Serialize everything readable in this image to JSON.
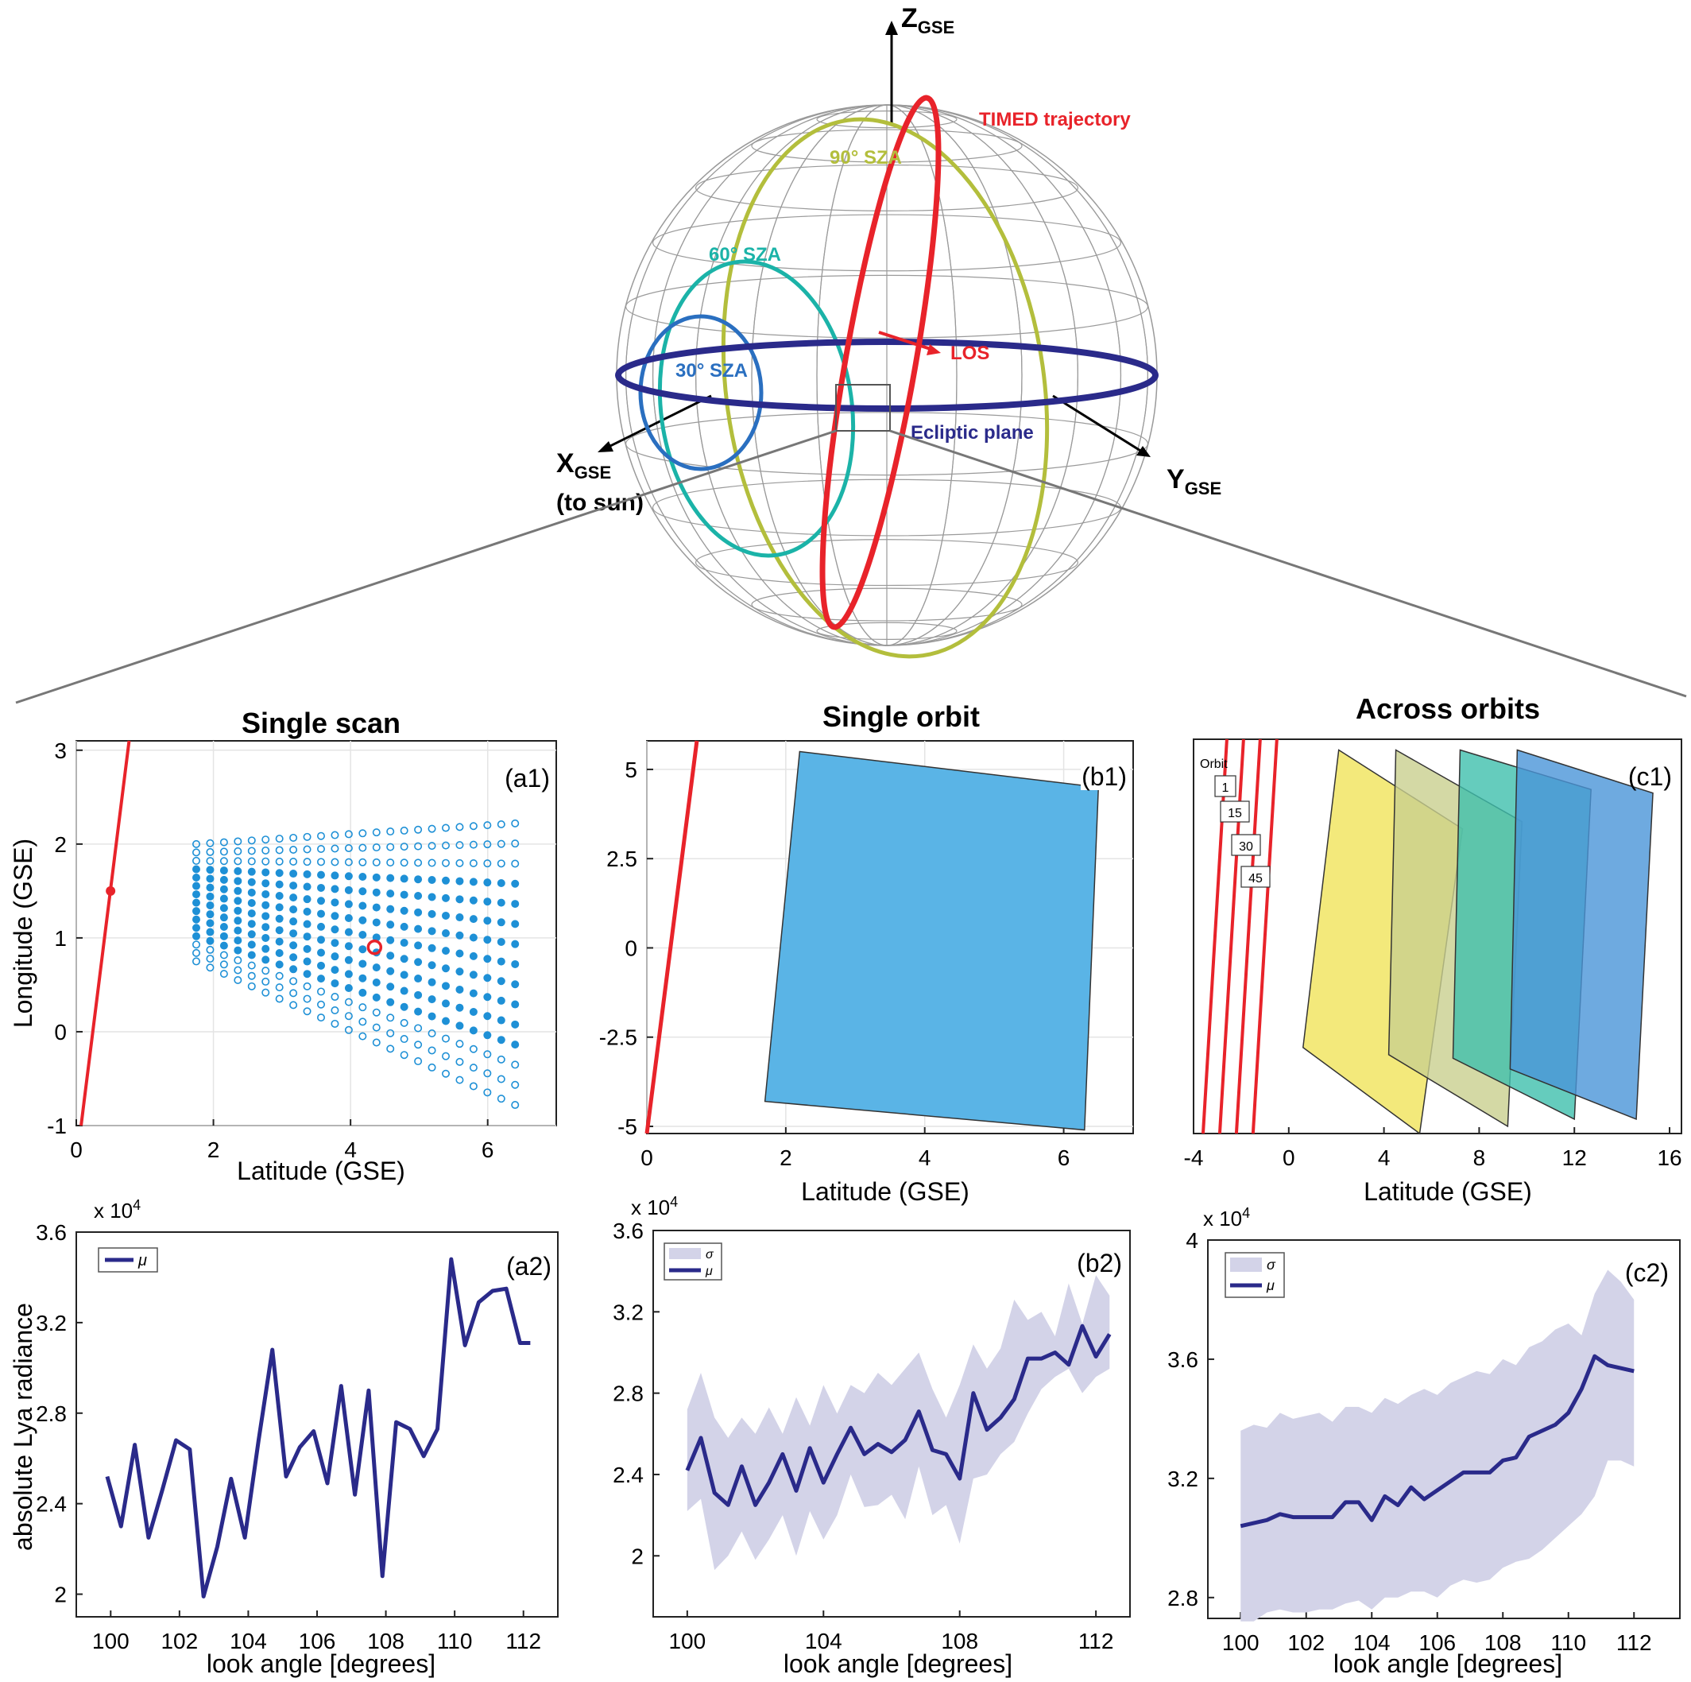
{
  "sphere": {
    "z_axis": {
      "main": "Z",
      "sub": "GSE"
    },
    "x_axis": {
      "main": "X",
      "sub": "GSE",
      "note": "(to sun)"
    },
    "y_axis": {
      "main": "Y",
      "sub": "GSE"
    },
    "trajectory_label": "TIMED trajectory",
    "los_label": "LOS",
    "ecliptic_label": "Ecliptic plane",
    "sza90": "90° SZA",
    "sza60": "60° SZA",
    "sza30": "30° SZA",
    "colors": {
      "trajectory": "#e8232a",
      "ecliptic": "#2a2a8a",
      "sza90": "#b3be3c",
      "sza60": "#1bb3a8",
      "sza30": "#2a6fc0",
      "grid": "#9a9a9a"
    }
  },
  "titles": {
    "a": "Single scan",
    "b": "Single orbit",
    "c": "Across orbits"
  },
  "panel_labels": {
    "a1": "(a1)",
    "b1": "(b1)",
    "c1": "(c1)",
    "a2": "(a2)",
    "b2": "(b2)",
    "c2": "(c2)"
  },
  "axis_labels": {
    "longitude": "Longitude (GSE)",
    "latitude": "Latitude (GSE)",
    "radiance": "absolute  Lya radiance",
    "look_angle": "look angle [degrees]",
    "exponent": "x 10"
  },
  "legend": {
    "mu": "μ",
    "sigma": "σ",
    "orbit_title": "Orbit",
    "orbits": [
      "1",
      "15",
      "30",
      "45"
    ]
  },
  "chart_data": [
    {
      "id": "a1",
      "type": "scatter",
      "title": "Single scan",
      "xlabel": "Latitude (GSE)",
      "ylabel": "Longitude (GSE)",
      "xlim": [
        0,
        7
      ],
      "ylim": [
        -1,
        3.1
      ],
      "xticks": [
        0,
        2,
        4,
        6
      ],
      "yticks": [
        -1,
        0,
        1,
        2,
        3
      ],
      "trajectory_line": [
        [
          0.07,
          -1
        ],
        [
          0.77,
          3.1
        ]
      ],
      "trajectory_point": [
        0.5,
        1.5
      ],
      "highlight_point": [
        4.35,
        0.9
      ],
      "scan_grid": {
        "columns": 24,
        "rows": 15,
        "x_start": 1.75,
        "x_end": 6.4,
        "left_edge": [
          0.75,
          2.0
        ],
        "right_edge": [
          -0.78,
          2.22
        ],
        "filled_rows": [
          3,
          11
        ]
      },
      "colors": {
        "trajectory": "#e8232a",
        "points": "#1e90d6"
      }
    },
    {
      "id": "b1",
      "type": "area",
      "title": "Single orbit",
      "xlabel": "Latitude (GSE)",
      "ylabel": "",
      "xlim": [
        0,
        7
      ],
      "ylim": [
        -5.2,
        5.8
      ],
      "xticks": [
        0,
        2,
        4,
        6
      ],
      "yticks": [
        5,
        2.5,
        0,
        -2.5,
        -5
      ],
      "trajectory_line": [
        [
          0.0,
          -5.2
        ],
        [
          0.72,
          5.8
        ]
      ],
      "footprint": [
        [
          2.2,
          5.5
        ],
        [
          6.5,
          4.5
        ],
        [
          6.3,
          -5.1
        ],
        [
          1.7,
          -4.3
        ]
      ],
      "colors": {
        "trajectory": "#e8232a",
        "footprint": "#5ab4e6"
      }
    },
    {
      "id": "c1",
      "type": "area",
      "title": "Across orbits",
      "xlabel": "Latitude (GSE)",
      "ylabel": "",
      "xlim": [
        -4,
        16.5
      ],
      "ylim": [
        -5.2,
        5.8
      ],
      "xticks": [
        -4,
        0,
        4,
        8,
        12,
        16
      ],
      "trajectory_lines": [
        [
          [
            -3.6,
            -5.2
          ],
          [
            -2.6,
            5.8
          ]
        ],
        [
          [
            -2.9,
            -5.2
          ],
          [
            -1.9,
            5.8
          ]
        ],
        [
          [
            -2.2,
            -5.2
          ],
          [
            -1.2,
            5.8
          ]
        ],
        [
          [
            -1.5,
            -5.2
          ],
          [
            -0.5,
            5.8
          ]
        ]
      ],
      "footprints": [
        {
          "name": "1",
          "color": "#f0e45a",
          "poly": [
            [
              2.1,
              5.5
            ],
            [
              7.3,
              3.3
            ],
            [
              5.5,
              -5.2
            ],
            [
              0.6,
              -2.8
            ]
          ]
        },
        {
          "name": "15",
          "color": "#c9cf8e",
          "poly": [
            [
              4.5,
              5.5
            ],
            [
              9.8,
              3.5
            ],
            [
              9.2,
              -5.0
            ],
            [
              4.2,
              -3.0
            ]
          ]
        },
        {
          "name": "30",
          "color": "#3fbfac",
          "poly": [
            [
              7.2,
              5.5
            ],
            [
              12.7,
              4.4
            ],
            [
              12.0,
              -4.8
            ],
            [
              6.9,
              -3.1
            ]
          ]
        },
        {
          "name": "45",
          "color": "#4a95d8",
          "poly": [
            [
              9.6,
              5.5
            ],
            [
              15.3,
              4.3
            ],
            [
              14.6,
              -4.8
            ],
            [
              9.3,
              -3.4
            ]
          ]
        }
      ]
    },
    {
      "id": "a2",
      "type": "line",
      "xlabel": "look angle [degrees]",
      "ylabel": "absolute  Lya radiance",
      "xlim": [
        99,
        113
      ],
      "ylim": [
        1.9,
        3.6
      ],
      "yscale_label": "x 10^4",
      "xticks": [
        100,
        102,
        104,
        106,
        108,
        110,
        112
      ],
      "yticks": [
        2,
        2.4,
        2.8,
        3.2,
        3.6
      ],
      "series": [
        {
          "name": "μ",
          "x": [
            99.9,
            100.3,
            100.7,
            101.1,
            101.5,
            101.9,
            102.3,
            102.7,
            103.1,
            103.5,
            103.9,
            104.3,
            104.7,
            105.1,
            105.5,
            105.9,
            106.3,
            106.7,
            107.1,
            107.5,
            107.9,
            108.3,
            108.7,
            109.1,
            109.5,
            109.9,
            110.3,
            110.7,
            111.1,
            111.5,
            111.9,
            112.2
          ],
          "y": [
            2.52,
            2.3,
            2.66,
            2.25,
            2.46,
            2.68,
            2.64,
            1.99,
            2.21,
            2.51,
            2.25,
            2.68,
            3.08,
            2.52,
            2.65,
            2.72,
            2.49,
            2.92,
            2.44,
            2.9,
            2.08,
            2.76,
            2.73,
            2.61,
            2.73,
            3.48,
            3.1,
            3.29,
            3.34,
            3.35,
            3.11,
            3.11
          ]
        }
      ]
    },
    {
      "id": "b2",
      "type": "area",
      "xlabel": "look angle [degrees]",
      "ylabel": "",
      "xlim": [
        99,
        113
      ],
      "ylim": [
        1.7,
        3.6
      ],
      "yscale_label": "x 10^4",
      "xticks": [
        100,
        104,
        108,
        112
      ],
      "yticks": [
        2,
        2.4,
        2.8,
        3.2,
        3.6
      ],
      "x": [
        100.0,
        100.4,
        100.8,
        101.2,
        101.6,
        102.0,
        102.4,
        102.8,
        103.2,
        103.6,
        104.0,
        104.4,
        104.8,
        105.2,
        105.6,
        106.0,
        106.4,
        106.8,
        107.2,
        107.6,
        108.0,
        108.4,
        108.8,
        109.2,
        109.6,
        110.0,
        110.4,
        110.8,
        111.2,
        111.6,
        112.0,
        112.4
      ],
      "series": [
        {
          "name": "σ",
          "upper": [
            2.72,
            2.9,
            2.68,
            2.58,
            2.68,
            2.6,
            2.73,
            2.6,
            2.78,
            2.64,
            2.84,
            2.7,
            2.84,
            2.8,
            2.9,
            2.84,
            2.92,
            3.0,
            2.82,
            2.68,
            2.84,
            3.04,
            2.92,
            3.02,
            3.26,
            3.16,
            3.2,
            3.08,
            3.34,
            3.14,
            3.38,
            3.28
          ],
          "lower": [
            2.22,
            2.28,
            1.93,
            2.0,
            2.12,
            1.98,
            2.08,
            2.2,
            2.0,
            2.22,
            2.08,
            2.2,
            2.4,
            2.24,
            2.25,
            2.3,
            2.18,
            2.44,
            2.2,
            2.25,
            2.06,
            2.38,
            2.4,
            2.5,
            2.56,
            2.7,
            2.82,
            2.88,
            2.92,
            2.8,
            2.88,
            2.92
          ]
        },
        {
          "name": "μ",
          "values": [
            2.42,
            2.58,
            2.31,
            2.25,
            2.44,
            2.25,
            2.36,
            2.5,
            2.32,
            2.53,
            2.36,
            2.5,
            2.63,
            2.5,
            2.55,
            2.51,
            2.57,
            2.71,
            2.52,
            2.5,
            2.38,
            2.8,
            2.62,
            2.68,
            2.77,
            2.97,
            2.97,
            3.0,
            2.94,
            3.13,
            2.98,
            3.09
          ]
        }
      ]
    },
    {
      "id": "c2",
      "type": "area",
      "xlabel": "look angle [degrees]",
      "ylabel": "",
      "xlim": [
        99,
        113.4
      ],
      "ylim": [
        2.73,
        4.0
      ],
      "yscale_label": "x 10^4",
      "xticks": [
        100,
        102,
        104,
        106,
        108,
        110,
        112
      ],
      "yticks": [
        2.8,
        3.2,
        3.6,
        4
      ],
      "x": [
        100.0,
        100.4,
        100.8,
        101.2,
        101.6,
        102.0,
        102.4,
        102.8,
        103.2,
        103.6,
        104.0,
        104.4,
        104.8,
        105.2,
        105.6,
        106.0,
        106.4,
        106.8,
        107.2,
        107.6,
        108.0,
        108.4,
        108.8,
        109.2,
        109.6,
        110.0,
        110.4,
        110.8,
        111.2,
        111.6,
        112.0
      ],
      "series": [
        {
          "name": "σ",
          "upper": [
            3.36,
            3.38,
            3.37,
            3.42,
            3.4,
            3.41,
            3.42,
            3.39,
            3.44,
            3.44,
            3.42,
            3.47,
            3.45,
            3.48,
            3.5,
            3.48,
            3.52,
            3.54,
            3.56,
            3.55,
            3.6,
            3.58,
            3.64,
            3.66,
            3.7,
            3.72,
            3.68,
            3.82,
            3.9,
            3.86,
            3.8
          ],
          "lower": [
            2.72,
            2.72,
            2.75,
            2.76,
            2.75,
            2.75,
            2.76,
            2.76,
            2.78,
            2.79,
            2.76,
            2.8,
            2.8,
            2.82,
            2.82,
            2.8,
            2.84,
            2.86,
            2.85,
            2.86,
            2.9,
            2.92,
            2.93,
            2.96,
            3.0,
            3.04,
            3.08,
            3.14,
            3.26,
            3.26,
            3.24
          ]
        },
        {
          "name": "μ",
          "values": [
            3.04,
            3.05,
            3.06,
            3.08,
            3.07,
            3.07,
            3.07,
            3.07,
            3.12,
            3.12,
            3.06,
            3.14,
            3.11,
            3.17,
            3.13,
            3.16,
            3.19,
            3.22,
            3.22,
            3.22,
            3.26,
            3.27,
            3.34,
            3.36,
            3.38,
            3.42,
            3.5,
            3.61,
            3.58,
            3.57,
            3.56
          ]
        }
      ]
    }
  ]
}
